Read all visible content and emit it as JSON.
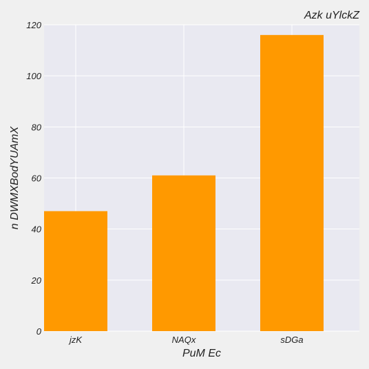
{
  "chart_data": {
    "type": "bar",
    "title": "Azk   uYlckZ",
    "xlabel": "PuM Ec",
    "ylabel": "n DWMXBodYUAmX",
    "categories": [
      "jzK",
      "NAQx",
      "sDGa"
    ],
    "values": [
      47,
      61,
      116
    ],
    "ylim": [
      0,
      120
    ],
    "yticks": [
      0,
      20,
      40,
      60,
      80,
      100,
      120
    ],
    "grid": true,
    "colors": {
      "bar": "#ff9900",
      "plot_background": "#e9e9f1",
      "grid": "#ffffff",
      "figure_background": "#f0f0f0"
    }
  }
}
